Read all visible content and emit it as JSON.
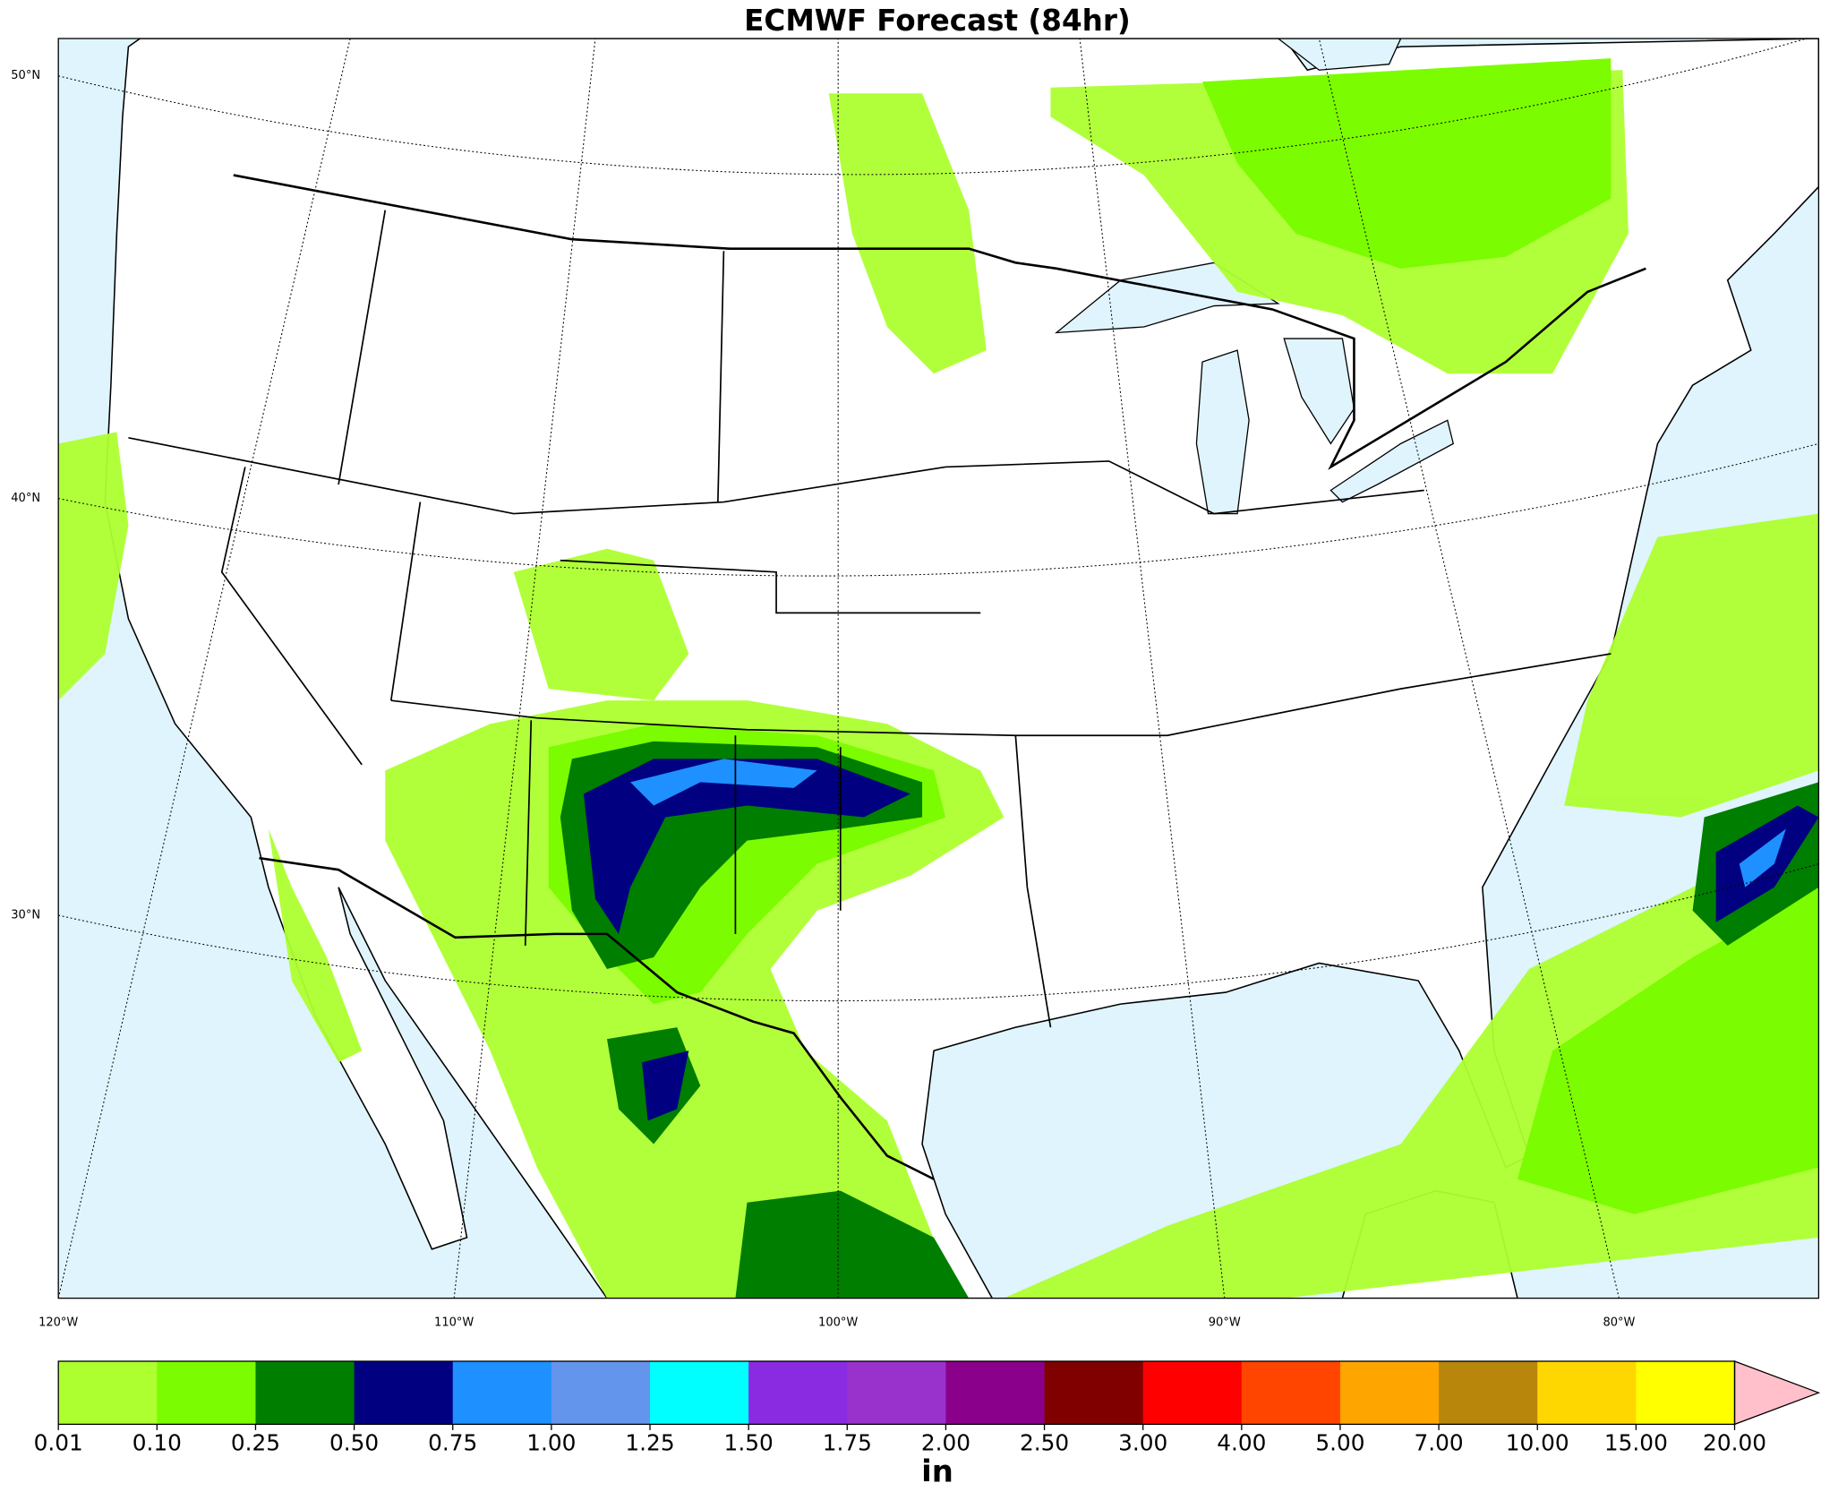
{
  "title": "ECMWF Forecast (84hr)",
  "map": {
    "lat_labels": [
      "50°N",
      "40°N",
      "30°N"
    ],
    "lon_labels": [
      "120°W",
      "110°W",
      "100°W",
      "90°W",
      "80°W"
    ]
  },
  "colorbar": {
    "ticks": [
      {
        "value": 0.01,
        "label": "0.01"
      },
      {
        "value": 0.1,
        "label": "0.10"
      },
      {
        "value": 0.25,
        "label": "0.25"
      },
      {
        "value": 0.5,
        "label": "0.50"
      },
      {
        "value": 0.75,
        "label": "0.75"
      },
      {
        "value": 1,
        "label": "1.00"
      },
      {
        "value": 1.25,
        "label": "1.25"
      },
      {
        "value": 1.5,
        "label": "1.50"
      },
      {
        "value": 1.75,
        "label": "1.75"
      },
      {
        "value": 2,
        "label": "2.00"
      },
      {
        "value": 2.5,
        "label": "2.50"
      },
      {
        "value": 3,
        "label": "3.00"
      },
      {
        "value": 4,
        "label": "4.00"
      },
      {
        "value": 5,
        "label": "5.00"
      },
      {
        "value": 7,
        "label": "7.00"
      },
      {
        "value": 10,
        "label": "10.00"
      },
      {
        "value": 15,
        "label": "15.00"
      },
      {
        "value": 20,
        "label": "20.00"
      }
    ],
    "colors": [
      "#adff2f",
      "#7cfc00",
      "#007e00",
      "#000080",
      "#1e90ff",
      "#6495ed",
      "#00ffff",
      "#8a2be2",
      "#9932cc",
      "#8b008b",
      "#800000",
      "#ff0000",
      "#ff4500",
      "#ffa500",
      "#b8860b",
      "#ffd700",
      "#ffff00"
    ],
    "extend_color": "#ffc0cb",
    "unit": "in"
  }
}
